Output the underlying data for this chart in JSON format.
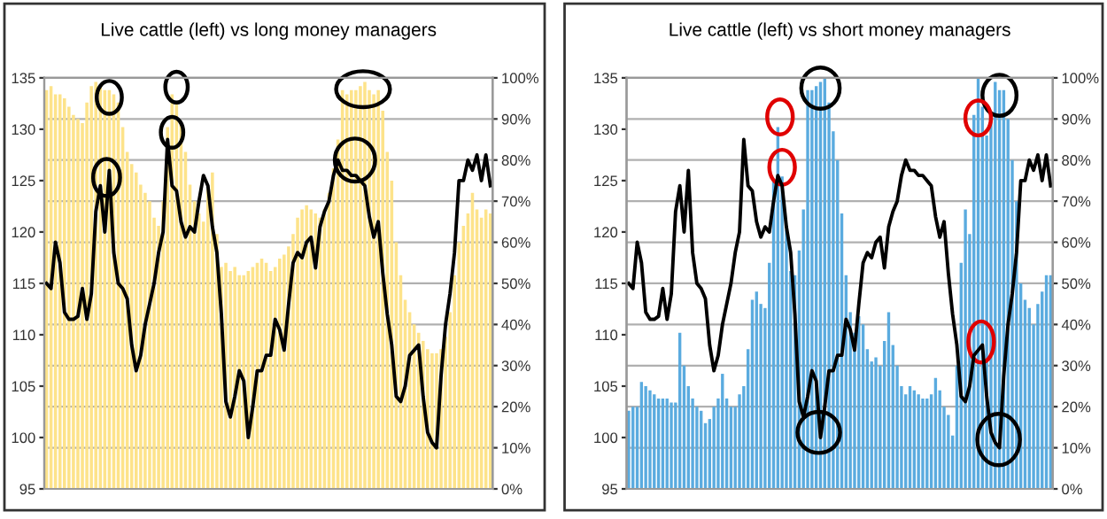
{
  "chart_data": [
    {
      "type": "bar",
      "title": "Live cattle (left) vs long money managers",
      "categories": [
        null,
        null,
        null,
        null,
        null,
        null,
        null,
        null,
        null,
        null,
        null,
        null,
        null,
        null,
        null,
        null,
        null,
        null,
        null,
        null,
        null,
        null,
        null,
        null,
        null,
        null,
        null,
        null,
        null,
        null,
        null,
        null,
        null,
        null,
        null,
        null,
        null,
        null,
        null,
        null,
        null,
        null,
        null,
        null,
        null,
        null,
        null,
        null,
        null,
        null,
        null,
        null,
        null,
        null,
        null,
        null,
        null,
        null,
        null,
        null,
        null,
        null,
        null,
        null,
        null,
        null,
        null,
        null,
        null,
        null,
        null,
        null,
        null,
        null,
        null,
        null,
        null,
        null,
        null,
        null,
        null,
        null,
        null,
        null,
        null,
        null,
        null,
        null,
        null,
        null,
        null,
        null,
        null,
        null,
        null,
        null,
        null,
        null,
        null,
        null
      ],
      "series": [
        {
          "axis": "y2",
          "color": "#fde38a",
          "values": [
            97,
            98,
            96,
            96,
            95,
            93,
            91,
            90,
            89,
            94,
            98,
            99,
            98,
            97,
            97,
            96,
            94,
            88,
            82,
            79,
            77,
            74,
            72,
            70,
            66,
            64,
            70,
            88,
            96,
            94,
            89,
            82,
            74,
            70,
            67,
            65,
            73,
            77,
            62,
            54,
            55,
            53,
            54,
            52,
            52,
            53,
            54,
            55,
            56,
            55,
            53,
            54,
            56,
            57,
            59,
            62,
            66,
            68,
            69,
            68,
            67,
            66,
            68,
            72,
            78,
            85,
            97,
            96,
            97,
            97,
            98,
            99,
            97,
            96,
            97,
            92,
            82,
            75,
            60,
            52,
            46,
            43,
            40,
            38,
            36,
            34,
            33,
            33,
            34,
            37,
            43,
            52,
            60,
            64,
            67,
            72,
            68,
            66,
            68,
            67
          ]
        },
        {
          "type": "line",
          "axis": "y",
          "color": "#000000",
          "values": [
            115,
            114.5,
            119,
            117,
            112.2,
            111.5,
            111.5,
            111.8,
            114.5,
            111.5,
            114,
            122,
            124.5,
            120,
            126,
            118,
            115,
            114.5,
            113.5,
            109,
            106.5,
            108,
            111,
            113,
            115,
            118,
            120,
            129,
            124.5,
            124,
            121,
            119.5,
            120.5,
            120,
            123,
            125.5,
            124.5,
            120.5,
            118,
            112,
            103.5,
            102,
            104,
            106.5,
            105.5,
            100,
            103,
            106.5,
            106.5,
            108,
            108,
            111.5,
            110.5,
            108.5,
            113,
            117,
            118,
            117.5,
            119,
            119.5,
            116.5,
            120.5,
            122,
            123,
            125.5,
            127,
            126,
            126,
            125.5,
            125.5,
            125,
            124.5,
            121.5,
            119.5,
            121,
            116,
            112,
            109,
            104,
            103.5,
            105,
            108,
            108.5,
            109,
            104,
            100.5,
            99.5,
            99,
            106,
            111,
            114,
            118,
            125,
            125,
            127,
            126,
            127.5,
            125,
            127.5,
            124.5
          ]
        }
      ],
      "ylim": [
        95,
        135
      ],
      "yticks": [
        95,
        100,
        105,
        110,
        115,
        120,
        125,
        130,
        135
      ],
      "y2lim": [
        0,
        100
      ],
      "y2ticks": [
        {
          "value": 0,
          "label": "0%"
        },
        {
          "value": 10,
          "label": "10%"
        },
        {
          "value": 20,
          "label": "20%"
        },
        {
          "value": 30,
          "label": "30%"
        },
        {
          "value": 40,
          "label": "40%"
        },
        {
          "value": 50,
          "label": "50%"
        },
        {
          "value": 60,
          "label": "60%"
        },
        {
          "value": 70,
          "label": "70%"
        },
        {
          "value": 80,
          "label": "80%"
        },
        {
          "value": 90,
          "label": "90%"
        },
        {
          "value": 100,
          "label": "100%"
        }
      ],
      "grid": "y"
    },
    {
      "type": "bar",
      "title": "Live cattle (left) vs short money managers",
      "categories": [
        null,
        null,
        null,
        null,
        null,
        null,
        null,
        null,
        null,
        null,
        null,
        null,
        null,
        null,
        null,
        null,
        null,
        null,
        null,
        null,
        null,
        null,
        null,
        null,
        null,
        null,
        null,
        null,
        null,
        null,
        null,
        null,
        null,
        null,
        null,
        null,
        null,
        null,
        null,
        null,
        null,
        null,
        null,
        null,
        null,
        null,
        null,
        null,
        null,
        null,
        null,
        null,
        null,
        null,
        null,
        null,
        null,
        null,
        null,
        null,
        null,
        null,
        null,
        null,
        null,
        null,
        null,
        null,
        null,
        null,
        null,
        null,
        null,
        null,
        null,
        null,
        null,
        null,
        null,
        null,
        null,
        null,
        null,
        null,
        null,
        null,
        null,
        null,
        null,
        null,
        null,
        null,
        null,
        null,
        null,
        null,
        null,
        null,
        null,
        null
      ],
      "series": [
        {
          "axis": "y2",
          "color": "#5aabdf",
          "values": [
            19,
            20,
            20,
            26,
            25,
            24,
            23,
            22,
            22,
            22,
            21,
            21,
            38,
            30,
            25,
            22,
            20,
            19,
            16,
            17,
            20,
            22,
            28,
            22,
            20,
            20,
            23,
            25,
            34,
            46,
            48,
            45,
            44,
            55,
            75,
            88,
            76,
            63,
            53,
            52,
            58,
            68,
            97,
            97,
            98,
            99,
            100,
            94,
            87,
            80,
            67,
            52,
            43,
            38,
            42,
            40,
            34,
            31,
            32,
            30,
            36,
            43,
            35,
            30,
            25,
            23,
            25,
            24,
            23,
            22,
            22,
            23,
            27,
            24,
            20,
            18,
            13,
            30,
            55,
            68,
            62,
            91,
            100,
            93,
            86,
            90,
            99,
            97,
            97,
            90,
            80,
            70,
            50,
            46,
            44,
            40,
            45,
            48,
            52,
            52
          ]
        },
        {
          "type": "line",
          "axis": "y",
          "color": "#000000",
          "values": [
            115,
            114.5,
            119,
            117,
            112.2,
            111.5,
            111.5,
            111.8,
            114.5,
            111.5,
            114,
            122,
            124.5,
            120,
            126,
            118,
            115,
            114.5,
            113.5,
            109,
            106.5,
            108,
            111,
            113,
            115,
            118,
            120,
            129,
            124.5,
            124,
            121,
            119.5,
            120.5,
            120,
            123,
            125.5,
            124.5,
            120.5,
            118,
            112,
            103.5,
            102,
            104,
            106.5,
            105.5,
            100,
            103,
            106.5,
            106.5,
            108,
            108,
            111.5,
            110.5,
            108.5,
            113,
            117,
            118,
            117.5,
            119,
            119.5,
            116.5,
            120.5,
            122,
            123,
            125.5,
            127,
            126,
            126,
            125.5,
            125.5,
            125,
            124.5,
            121.5,
            119.5,
            121,
            116,
            112,
            109,
            104,
            103.5,
            105,
            108,
            108.5,
            109,
            104,
            100.5,
            99.5,
            99,
            106,
            111,
            114,
            118,
            125,
            125,
            127,
            126,
            127.5,
            125,
            127.5,
            124.5
          ]
        }
      ],
      "ylim": [
        95,
        135
      ],
      "yticks": [
        95,
        100,
        105,
        110,
        115,
        120,
        125,
        130,
        135
      ],
      "y2lim": [
        0,
        100
      ],
      "y2ticks": [
        {
          "value": 0,
          "label": "0%"
        },
        {
          "value": 10,
          "label": "10%"
        },
        {
          "value": 20,
          "label": "20%"
        },
        {
          "value": 30,
          "label": "30%"
        },
        {
          "value": 40,
          "label": "40%"
        },
        {
          "value": 50,
          "label": "50%"
        },
        {
          "value": 60,
          "label": "60%"
        },
        {
          "value": 70,
          "label": "70%"
        },
        {
          "value": 80,
          "label": "80%"
        },
        {
          "value": 90,
          "label": "90%"
        },
        {
          "value": 100,
          "label": "100%"
        }
      ],
      "grid": "y"
    }
  ]
}
